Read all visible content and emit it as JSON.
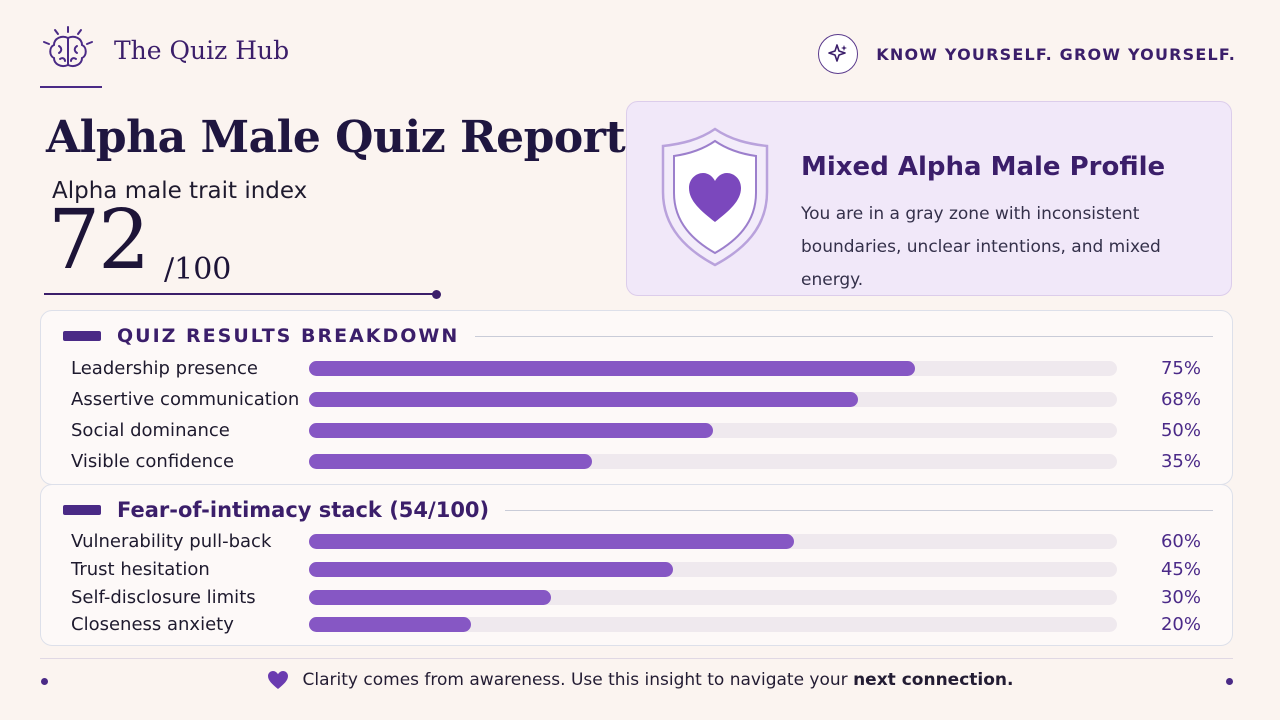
{
  "brand": {
    "name": "The Quiz Hub",
    "icon": "brain-icon"
  },
  "tagline": {
    "text": "KNOW YOURSELF. GROW YOURSELF.",
    "icon": "sparkle-icon"
  },
  "report": {
    "title": "Alpha Male Quiz Report",
    "trait_label": "Alpha male trait index",
    "score": "72",
    "score_max": "/100"
  },
  "profile": {
    "icon": "shield-heart-icon",
    "title": "Mixed Alpha Male Profile",
    "description": "You are in a gray zone with inconsistent boundaries, unclear intentions, and mixed energy."
  },
  "breakdown": {
    "title": "QUIZ RESULTS BREAKDOWN",
    "items": [
      {
        "label": "Leadership presence",
        "value": 75,
        "pct": "75%"
      },
      {
        "label": "Assertive communication",
        "value": 68,
        "pct": "68%"
      },
      {
        "label": "Social dominance",
        "value": 50,
        "pct": "50%"
      },
      {
        "label": "Visible confidence",
        "value": 35,
        "pct": "35%"
      }
    ]
  },
  "intimacy": {
    "title": "Fear-of-intimacy stack (54/100)",
    "items": [
      {
        "label": "Vulnerability pull-back",
        "value": 60,
        "pct": "60%"
      },
      {
        "label": "Trust hesitation",
        "value": 45,
        "pct": "45%"
      },
      {
        "label": "Self-disclosure limits",
        "value": 30,
        "pct": "30%"
      },
      {
        "label": "Closeness anxiety",
        "value": 20,
        "pct": "20%"
      }
    ]
  },
  "footer": {
    "icon": "heart-icon",
    "text": "Clarity comes from awareness. Use this insight to navigate your ",
    "emphasis": "next connection."
  },
  "colors": {
    "accent": "#8657c4",
    "brand": "#3b1e6a",
    "track": "#efe9ee",
    "background": "#fbf4f0"
  }
}
